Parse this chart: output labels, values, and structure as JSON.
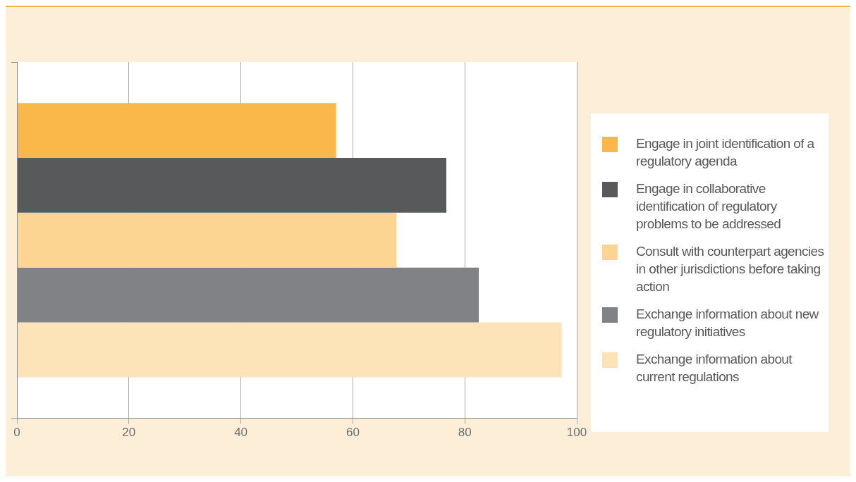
{
  "chart_data": {
    "type": "bar",
    "orientation": "horizontal",
    "categories": [
      null
    ],
    "series": [
      {
        "name": "Engage in joint identification of a regulatory agenda",
        "color": "#fbb84a",
        "values": [
          57
        ]
      },
      {
        "name": "Engage in collaborative identification of regulatory problems to be addressed",
        "color": "#58595b",
        "values": [
          76.7
        ]
      },
      {
        "name": "Consult with counterpart agencies in other jurisdictions before taking action",
        "color": "#fdd593",
        "values": [
          67.8
        ]
      },
      {
        "name": "Exchange information about new regulatory initiatives",
        "color": "#818285",
        "values": [
          82.5
        ]
      },
      {
        "name": "Exchange information about current regulations",
        "color": "#fde3b8",
        "values": [
          97.3
        ]
      }
    ],
    "xlim": [
      0,
      100
    ],
    "xticks": [
      0,
      20,
      40,
      60,
      80,
      100
    ],
    "grid": "x",
    "legend": "right"
  }
}
